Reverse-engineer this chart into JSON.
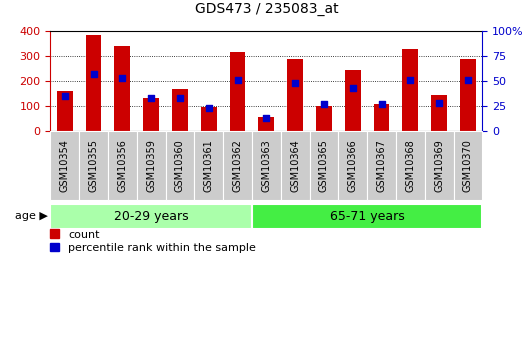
{
  "title": "GDS473 / 235083_at",
  "samples": [
    "GSM10354",
    "GSM10355",
    "GSM10356",
    "GSM10359",
    "GSM10360",
    "GSM10361",
    "GSM10362",
    "GSM10363",
    "GSM10364",
    "GSM10365",
    "GSM10366",
    "GSM10367",
    "GSM10368",
    "GSM10369",
    "GSM10370"
  ],
  "counts": [
    162,
    385,
    340,
    133,
    168,
    98,
    315,
    55,
    288,
    101,
    245,
    107,
    330,
    143,
    288
  ],
  "percentile": [
    35,
    57,
    53,
    33,
    33,
    23,
    51,
    13,
    48,
    27,
    43,
    27,
    51,
    28,
    51
  ],
  "group1_label": "20-29 years",
  "group1_count": 7,
  "group2_label": "65-71 years",
  "group2_count": 8,
  "group1_color": "#aaffaa",
  "group2_color": "#44ee44",
  "bar_color": "#cc0000",
  "dot_color": "#0000cc",
  "left_axis_color": "#cc0000",
  "right_axis_color": "#0000cc",
  "ylim_left": [
    0,
    400
  ],
  "ylim_right": [
    0,
    100
  ],
  "yticks_left": [
    0,
    100,
    200,
    300,
    400
  ],
  "yticks_right": [
    0,
    25,
    50,
    75,
    100
  ],
  "xtick_bg": "#cccccc",
  "age_label": "age",
  "legend_count": "count",
  "legend_pct": "percentile rank within the sample",
  "title_fontsize": 10,
  "tick_fontsize": 7,
  "axis_fontsize": 8,
  "group_fontsize": 9
}
